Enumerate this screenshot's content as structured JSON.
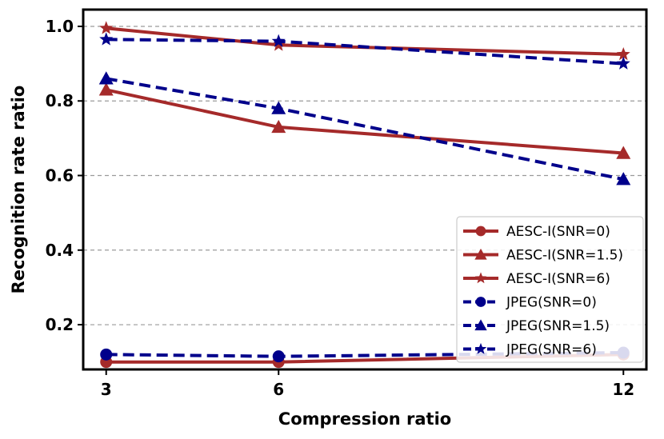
{
  "chart_data": {
    "type": "line",
    "title": "",
    "xlabel": "Compression ratio",
    "ylabel": "Recognition rate ratio",
    "x": [
      3,
      6,
      12
    ],
    "x_ticks": [
      "3",
      "6",
      "12"
    ],
    "y_ticks": [
      "0.2",
      "0.4",
      "0.6",
      "0.8",
      "1.0"
    ],
    "xlim": [
      2.6,
      12.4
    ],
    "ylim": [
      0.08,
      1.045
    ],
    "grid": "horizontal dashed",
    "legend_position": "lower-right",
    "series": [
      {
        "name": "AESC-I(SNR=0)",
        "values": [
          0.1,
          0.1,
          0.12
        ],
        "color": "#a52a2a",
        "dash": "solid",
        "marker": "circle"
      },
      {
        "name": "AESC-I(SNR=1.5)",
        "values": [
          0.83,
          0.73,
          0.66
        ],
        "color": "#a52a2a",
        "dash": "solid",
        "marker": "triangle"
      },
      {
        "name": "AESC-I(SNR=6)",
        "values": [
          0.995,
          0.95,
          0.925
        ],
        "color": "#a52a2a",
        "dash": "solid",
        "marker": "star"
      },
      {
        "name": "JPEG(SNR=0)",
        "values": [
          0.12,
          0.115,
          0.125
        ],
        "color": "#00008b",
        "dash": "dashed",
        "marker": "circle"
      },
      {
        "name": "JPEG(SNR=1.5)",
        "values": [
          0.86,
          0.78,
          0.59
        ],
        "color": "#00008b",
        "dash": "dashed",
        "marker": "triangle"
      },
      {
        "name": "JPEG(SNR=6)",
        "values": [
          0.965,
          0.96,
          0.9
        ],
        "color": "#00008b",
        "dash": "dashed",
        "marker": "star"
      }
    ]
  }
}
